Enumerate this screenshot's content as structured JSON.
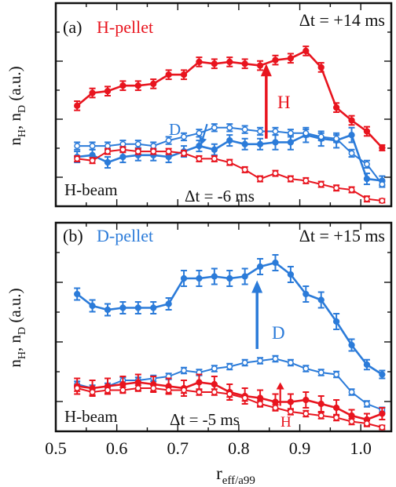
{
  "figure": {
    "xlabel_main": "r",
    "xlabel_sub": "eff/a99"
  },
  "colors": {
    "red": "#e8141e",
    "blue": "#2b7bd9",
    "black": "#111111"
  },
  "chart_data": [
    {
      "type": "line",
      "panel_label": "(a)",
      "title": "H-pellet",
      "title_color": "red",
      "ylabel_main": "n",
      "ylabel_sub1": "H",
      "ylabel_sep": ", n",
      "ylabel_sub2": "D",
      "ylabel_tail": " (a.u.)",
      "xlim": [
        0.5,
        1.05
      ],
      "ylim": [
        0,
        1
      ],
      "xticks": [
        0.5,
        0.6,
        0.7,
        0.8,
        0.9,
        1.0
      ],
      "annotations": {
        "dt_after": "Δt = +14 ms",
        "dt_before": "Δt = -6 ms",
        "beam": "H-beam",
        "species_label": "H",
        "species_color": "red",
        "d_label": "D"
      },
      "arrow": {
        "x": 0.845,
        "y_from": 0.37,
        "y_to": 0.78,
        "color": "red"
      },
      "small_arrow": {
        "x_from": 0.748,
        "y_from": 0.45,
        "x_to": 0.738,
        "y_to": 0.335,
        "color": "blue"
      },
      "series": [
        {
          "color": "red",
          "marker": "filled",
          "x": [
            0.535,
            0.56,
            0.585,
            0.61,
            0.635,
            0.66,
            0.685,
            0.71,
            0.735,
            0.76,
            0.785,
            0.81,
            0.835,
            0.86,
            0.885,
            0.91,
            0.935,
            0.96,
            0.985,
            1.01,
            1.035
          ],
          "y": [
            0.55,
            0.62,
            0.63,
            0.66,
            0.66,
            0.67,
            0.72,
            0.72,
            0.79,
            0.78,
            0.79,
            0.78,
            0.77,
            0.8,
            0.81,
            0.85,
            0.76,
            0.54,
            0.47,
            0.41,
            0.32
          ],
          "err": [
            0.025,
            0.025,
            0.025,
            0.025,
            0.025,
            0.025,
            0.025,
            0.025,
            0.025,
            0.025,
            0.025,
            0.025,
            0.025,
            0.025,
            0.025,
            0.025,
            0.025,
            0.025,
            0.025,
            0.025,
            0.015
          ]
        },
        {
          "color": "blue",
          "marker": "filled",
          "x": [
            0.535,
            0.56,
            0.585,
            0.61,
            0.635,
            0.66,
            0.685,
            0.71,
            0.735,
            0.76,
            0.785,
            0.81,
            0.835,
            0.86,
            0.885,
            0.91,
            0.935,
            0.96,
            0.985,
            1.01,
            1.035
          ],
          "y": [
            0.27,
            0.28,
            0.24,
            0.27,
            0.28,
            0.28,
            0.27,
            0.3,
            0.33,
            0.31,
            0.36,
            0.34,
            0.34,
            0.35,
            0.35,
            0.39,
            0.37,
            0.36,
            0.39,
            0.15,
            0.14
          ],
          "err": [
            0.03,
            0.03,
            0.03,
            0.03,
            0.03,
            0.03,
            0.03,
            0.03,
            0.03,
            0.03,
            0.03,
            0.03,
            0.03,
            0.04,
            0.04,
            0.04,
            0.04,
            0.04,
            0.04,
            0.03,
            0.025
          ]
        },
        {
          "color": "blue",
          "marker": "open",
          "x": [
            0.535,
            0.56,
            0.585,
            0.61,
            0.635,
            0.66,
            0.685,
            0.71,
            0.735,
            0.76,
            0.785,
            0.81,
            0.835,
            0.86,
            0.885,
            0.91,
            0.935,
            0.96,
            0.985,
            1.01,
            1.035
          ],
          "y": [
            0.33,
            0.33,
            0.33,
            0.34,
            0.34,
            0.33,
            0.36,
            0.38,
            0.4,
            0.43,
            0.43,
            0.42,
            0.41,
            0.41,
            0.4,
            0.4,
            0.38,
            0.37,
            0.29,
            0.23,
            0.12
          ],
          "err": [
            0.02,
            0.02,
            0.02,
            0.02,
            0.02,
            0.02,
            0.02,
            0.02,
            0.02,
            0.02,
            0.02,
            0.02,
            0.02,
            0.02,
            0.02,
            0.02,
            0.02,
            0.02,
            0.02,
            0.02,
            0.015
          ]
        },
        {
          "color": "red",
          "marker": "open",
          "x": [
            0.535,
            0.56,
            0.585,
            0.61,
            0.635,
            0.66,
            0.685,
            0.71,
            0.735,
            0.76,
            0.785,
            0.81,
            0.835,
            0.86,
            0.885,
            0.91,
            0.935,
            0.96,
            0.985,
            1.01,
            1.035
          ],
          "y": [
            0.26,
            0.25,
            0.3,
            0.31,
            0.3,
            0.3,
            0.3,
            0.29,
            0.26,
            0.26,
            0.24,
            0.2,
            0.15,
            0.18,
            0.15,
            0.14,
            0.12,
            0.1,
            0.09,
            0.04,
            0.03
          ],
          "err": [
            0.015,
            0.015,
            0.015,
            0.015,
            0.015,
            0.015,
            0.015,
            0.015,
            0.015,
            0.015,
            0.015,
            0.015,
            0.015,
            0.015,
            0.015,
            0.015,
            0.015,
            0.015,
            0.015,
            0.015,
            0.01
          ]
        }
      ]
    },
    {
      "type": "line",
      "panel_label": "(b)",
      "title": "D-pellet",
      "title_color": "blue",
      "ylabel_main": "n",
      "ylabel_sub1": "H",
      "ylabel_sep": ", n",
      "ylabel_sub2": "D",
      "ylabel_tail": " (a.u.)",
      "xlim": [
        0.5,
        1.05
      ],
      "ylim": [
        0,
        1
      ],
      "xticks": [
        0.5,
        0.6,
        0.7,
        0.8,
        0.9,
        1.0
      ],
      "xticklabels": [
        "0.5",
        "0.6",
        "0.7",
        "0.8",
        "0.9",
        "1.0"
      ],
      "annotations": {
        "dt_after": "Δt = +15 ms",
        "dt_before": "Δt = -5 ms",
        "beam": "H-beam",
        "species_label": "D",
        "species_color": "blue",
        "h_label": "H"
      },
      "arrow": {
        "x": 0.83,
        "y_from": 0.42,
        "y_to": 0.77,
        "color": "blue"
      },
      "small_arrow": {
        "x_from": 0.868,
        "y_from": 0.13,
        "x_to": 0.868,
        "y_to": 0.25,
        "color": "red"
      },
      "series": [
        {
          "color": "blue",
          "marker": "filled",
          "x": [
            0.535,
            0.56,
            0.585,
            0.61,
            0.635,
            0.66,
            0.685,
            0.71,
            0.735,
            0.76,
            0.785,
            0.81,
            0.835,
            0.86,
            0.885,
            0.91,
            0.935,
            0.96,
            0.985,
            1.01,
            1.035
          ],
          "y": [
            0.7,
            0.64,
            0.62,
            0.63,
            0.63,
            0.63,
            0.65,
            0.78,
            0.78,
            0.79,
            0.78,
            0.79,
            0.84,
            0.86,
            0.8,
            0.7,
            0.67,
            0.56,
            0.44,
            0.34,
            0.29
          ],
          "err": [
            0.03,
            0.03,
            0.03,
            0.03,
            0.03,
            0.03,
            0.03,
            0.04,
            0.04,
            0.04,
            0.04,
            0.04,
            0.04,
            0.04,
            0.04,
            0.04,
            0.04,
            0.04,
            0.03,
            0.025,
            0.02
          ]
        },
        {
          "color": "blue",
          "marker": "open",
          "x": [
            0.535,
            0.56,
            0.585,
            0.61,
            0.635,
            0.66,
            0.685,
            0.71,
            0.735,
            0.76,
            0.785,
            0.81,
            0.835,
            0.86,
            0.885,
            0.91,
            0.935,
            0.96,
            0.985,
            1.01,
            1.035
          ],
          "y": [
            0.24,
            0.22,
            0.23,
            0.26,
            0.26,
            0.27,
            0.28,
            0.31,
            0.3,
            0.32,
            0.33,
            0.35,
            0.36,
            0.37,
            0.35,
            0.32,
            0.3,
            0.29,
            0.2,
            0.14,
            0.11
          ],
          "err": [
            0.015,
            0.015,
            0.015,
            0.015,
            0.015,
            0.015,
            0.015,
            0.015,
            0.015,
            0.015,
            0.015,
            0.015,
            0.015,
            0.015,
            0.015,
            0.015,
            0.015,
            0.015,
            0.015,
            0.015,
            0.012
          ]
        },
        {
          "color": "red",
          "marker": "filled",
          "x": [
            0.535,
            0.56,
            0.585,
            0.61,
            0.635,
            0.66,
            0.685,
            0.71,
            0.735,
            0.76,
            0.785,
            0.81,
            0.835,
            0.86,
            0.885,
            0.91,
            0.935,
            0.96,
            0.985,
            1.01,
            1.035
          ],
          "y": [
            0.23,
            0.22,
            0.23,
            0.24,
            0.25,
            0.24,
            0.23,
            0.22,
            0.25,
            0.24,
            0.2,
            0.18,
            0.17,
            0.15,
            0.15,
            0.16,
            0.14,
            0.12,
            0.08,
            0.06,
            0.09
          ],
          "err": [
            0.04,
            0.04,
            0.04,
            0.04,
            0.04,
            0.04,
            0.04,
            0.04,
            0.04,
            0.04,
            0.04,
            0.04,
            0.04,
            0.04,
            0.04,
            0.04,
            0.04,
            0.04,
            0.03,
            0.03,
            0.03
          ]
        },
        {
          "color": "red",
          "marker": "open",
          "x": [
            0.535,
            0.56,
            0.585,
            0.61,
            0.635,
            0.66,
            0.685,
            0.71,
            0.735,
            0.76,
            0.785,
            0.81,
            0.835,
            0.86,
            0.885,
            0.91,
            0.935,
            0.96,
            0.985,
            1.01,
            1.035
          ],
          "y": [
            0.22,
            0.2,
            0.21,
            0.21,
            0.22,
            0.22,
            0.21,
            0.21,
            0.2,
            0.2,
            0.19,
            0.17,
            0.14,
            0.12,
            0.1,
            0.09,
            0.08,
            0.07,
            0.05,
            0.04,
            0.02
          ],
          "err": [
            0.015,
            0.015,
            0.015,
            0.015,
            0.015,
            0.015,
            0.015,
            0.015,
            0.015,
            0.015,
            0.015,
            0.015,
            0.015,
            0.015,
            0.015,
            0.015,
            0.015,
            0.015,
            0.015,
            0.015,
            0.01
          ]
        }
      ]
    }
  ]
}
